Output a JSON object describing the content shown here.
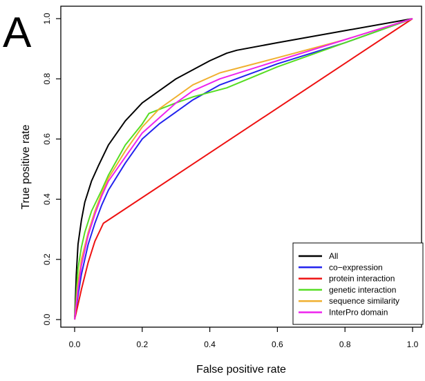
{
  "panel_label": "A",
  "chart_data": {
    "type": "line",
    "title": "",
    "xlabel": "False positive rate",
    "ylabel": "True positive rate",
    "xlim": [
      0,
      1
    ],
    "ylim": [
      0,
      1
    ],
    "x_ticks": [
      "0.0",
      "0.2",
      "0.4",
      "0.6",
      "0.8",
      "1.0"
    ],
    "y_ticks": [
      "0.0",
      "0.2",
      "0.4",
      "0.6",
      "0.8",
      "1.0"
    ],
    "grid": false,
    "legend_position": "bottom-right",
    "series": [
      {
        "name": "All",
        "color": "#000000",
        "x": [
          0,
          0.005,
          0.01,
          0.02,
          0.03,
          0.05,
          0.07,
          0.1,
          0.15,
          0.2,
          0.25,
          0.3,
          0.35,
          0.4,
          0.45,
          0.48,
          0.6,
          0.8,
          1.0
        ],
        "y": [
          0,
          0.15,
          0.25,
          0.33,
          0.39,
          0.46,
          0.51,
          0.58,
          0.66,
          0.72,
          0.76,
          0.8,
          0.83,
          0.86,
          0.885,
          0.895,
          0.92,
          0.96,
          1.0
        ]
      },
      {
        "name": "co−expression",
        "color": "#2222ee",
        "x": [
          0,
          0.01,
          0.02,
          0.04,
          0.06,
          0.08,
          0.1,
          0.15,
          0.2,
          0.25,
          0.3,
          0.35,
          0.43,
          0.6,
          0.8,
          1.0
        ],
        "y": [
          0,
          0.08,
          0.15,
          0.25,
          0.32,
          0.38,
          0.43,
          0.52,
          0.6,
          0.65,
          0.69,
          0.73,
          0.78,
          0.85,
          0.92,
          1.0
        ]
      },
      {
        "name": "protein interaction",
        "color": "#ee1111",
        "x": [
          0,
          0.02,
          0.04,
          0.06,
          0.085,
          1.0
        ],
        "y": [
          0,
          0.1,
          0.19,
          0.26,
          0.32,
          1.0
        ]
      },
      {
        "name": "genetic interaction",
        "color": "#55dd22",
        "x": [
          0,
          0.01,
          0.02,
          0.03,
          0.05,
          0.08,
          0.1,
          0.15,
          0.2,
          0.22,
          0.3,
          0.35,
          0.4,
          0.45,
          0.6,
          0.8,
          1.0
        ],
        "y": [
          0,
          0.17,
          0.24,
          0.29,
          0.36,
          0.43,
          0.48,
          0.58,
          0.65,
          0.685,
          0.72,
          0.74,
          0.755,
          0.77,
          0.84,
          0.92,
          1.0
        ]
      },
      {
        "name": "sequence similarity",
        "color": "#f0b030",
        "x": [
          0,
          0.01,
          0.02,
          0.04,
          0.06,
          0.08,
          0.1,
          0.15,
          0.2,
          0.25,
          0.3,
          0.35,
          0.43,
          0.6,
          0.8,
          1.0
        ],
        "y": [
          0,
          0.12,
          0.2,
          0.29,
          0.36,
          0.42,
          0.47,
          0.56,
          0.64,
          0.7,
          0.74,
          0.78,
          0.82,
          0.87,
          0.93,
          1.0
        ]
      },
      {
        "name": "InterPro domain",
        "color": "#ee22ee",
        "x": [
          0,
          0.01,
          0.02,
          0.04,
          0.06,
          0.08,
          0.1,
          0.15,
          0.2,
          0.25,
          0.3,
          0.35,
          0.43,
          0.6,
          0.8,
          1.0
        ],
        "y": [
          0,
          0.1,
          0.18,
          0.28,
          0.35,
          0.41,
          0.46,
          0.54,
          0.62,
          0.67,
          0.72,
          0.76,
          0.8,
          0.86,
          0.93,
          1.0
        ]
      }
    ]
  }
}
